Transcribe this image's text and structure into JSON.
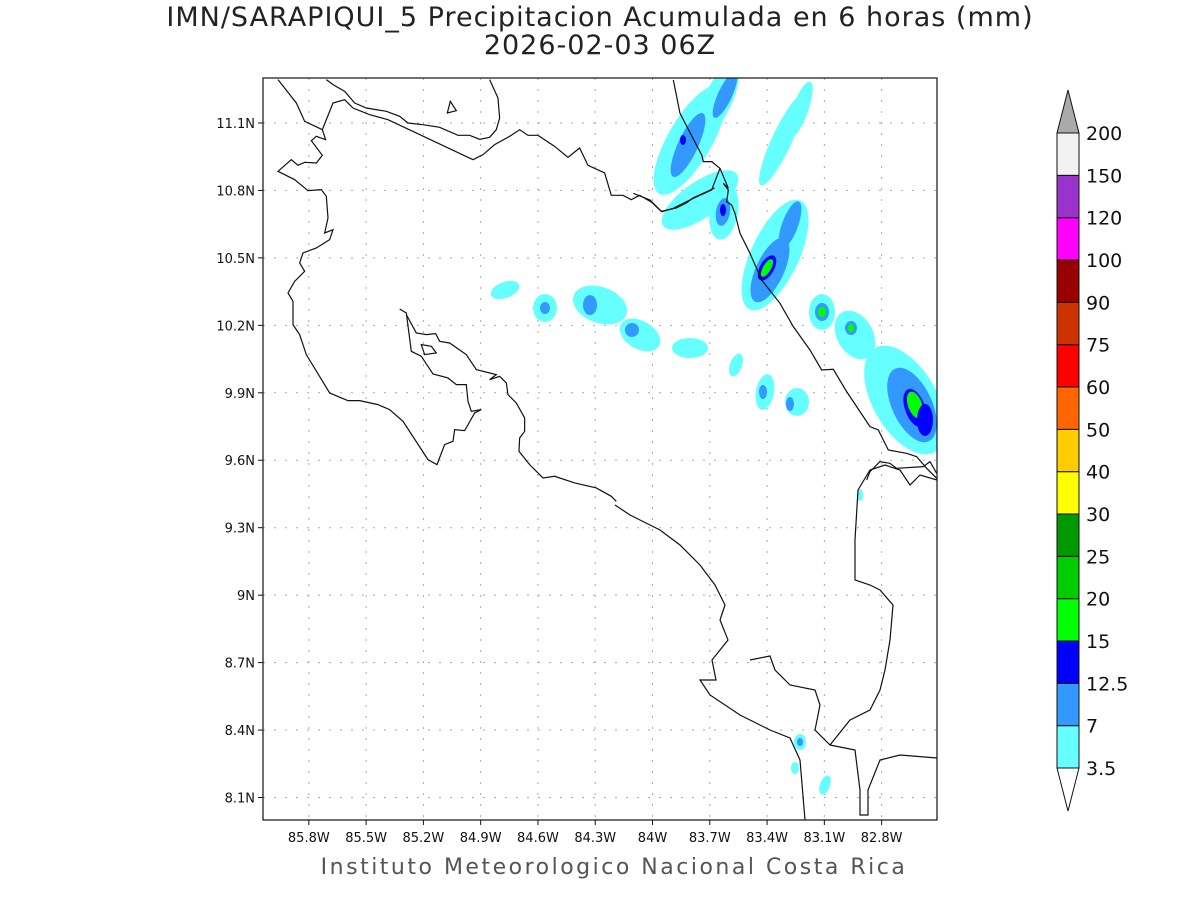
{
  "title": "IMN/SARAPIQUI_5 Precipitacion Acumulada en 6 horas (mm)",
  "subtitle": "2026-02-03 06Z",
  "footer": "Instituto Meteorologico Nacional Costa Rica",
  "map": {
    "lon_range": [
      -86.04,
      -82.51
    ],
    "lat_range": [
      8.0,
      11.3
    ],
    "lon_ticks": [
      {
        "value": -85.8,
        "label": "85.8W"
      },
      {
        "value": -85.5,
        "label": "85.5W"
      },
      {
        "value": -85.2,
        "label": "85.2W"
      },
      {
        "value": -84.9,
        "label": "84.9W"
      },
      {
        "value": -84.6,
        "label": "84.6W"
      },
      {
        "value": -84.3,
        "label": "84.3W"
      },
      {
        "value": -84.0,
        "label": "84W"
      },
      {
        "value": -83.7,
        "label": "83.7W"
      },
      {
        "value": -83.4,
        "label": "83.4W"
      },
      {
        "value": -83.1,
        "label": "83.1W"
      },
      {
        "value": -82.8,
        "label": "82.8W"
      }
    ],
    "lat_ticks": [
      {
        "value": 11.1,
        "label": "11.1N"
      },
      {
        "value": 10.8,
        "label": "10.8N"
      },
      {
        "value": 10.5,
        "label": "10.5N"
      },
      {
        "value": 10.2,
        "label": "10.2N"
      },
      {
        "value": 9.9,
        "label": "9.9N"
      },
      {
        "value": 9.6,
        "label": "9.6N"
      },
      {
        "value": 9.3,
        "label": "9.3N"
      },
      {
        "value": 9.0,
        "label": "9N"
      },
      {
        "value": 8.7,
        "label": "8.7N"
      },
      {
        "value": 8.4,
        "label": "8.4N"
      },
      {
        "value": 8.1,
        "label": "8.1N"
      }
    ]
  },
  "colorbar": {
    "labels": [
      "3.5",
      "7",
      "12.5",
      "15",
      "20",
      "25",
      "30",
      "40",
      "50",
      "60",
      "75",
      "90",
      "100",
      "120",
      "150",
      "200"
    ],
    "colors": [
      "#66ffff",
      "#3399ff",
      "#0000ff",
      "#00ff00",
      "#00cc00",
      "#009900",
      "#ffff00",
      "#ffcc00",
      "#ff6600",
      "#ff0000",
      "#cc3300",
      "#990000",
      "#ff00ff",
      "#9933cc",
      "#f2f2f2"
    ],
    "under_color": "#ffffff",
    "over_color": "#aaaaaa"
  }
}
